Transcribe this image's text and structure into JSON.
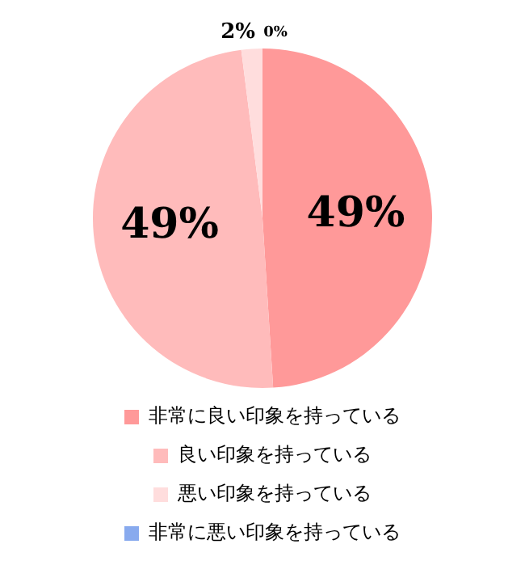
{
  "chart_data": {
    "type": "pie",
    "categories": [
      "非常に良い印象を持っている",
      "良い印象を持っている",
      "悪い印象を持っている",
      "非常に悪い印象を持っている"
    ],
    "values": [
      49,
      49,
      2,
      0
    ],
    "colors": [
      "#ff9999",
      "#ffbbbb",
      "#ffdddd",
      "#88aaee"
    ],
    "value_labels": [
      "49%",
      "49%",
      "2%",
      "0%"
    ],
    "legend": "bottom"
  }
}
